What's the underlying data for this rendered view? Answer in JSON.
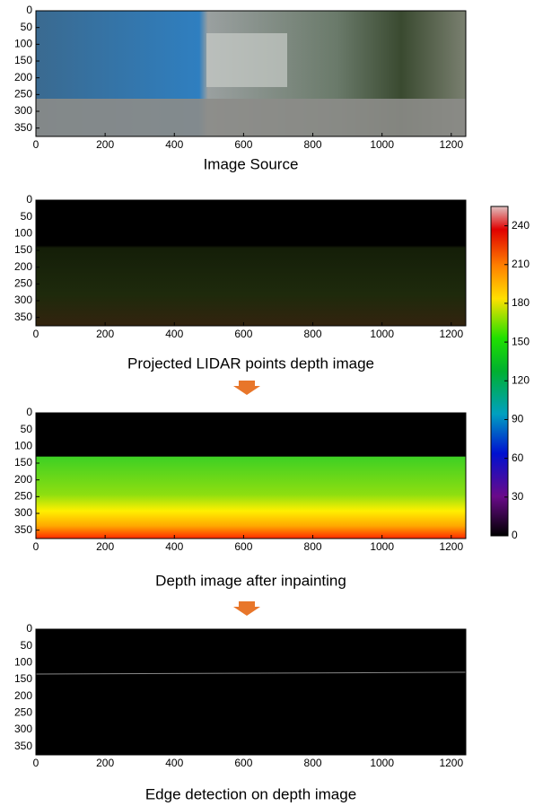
{
  "chart_data": [
    {
      "type": "image",
      "title": "Image Source",
      "xlim": [
        0,
        1242
      ],
      "ylim": [
        0,
        375
      ],
      "y_inverted": true,
      "xticks": [
        0,
        200,
        400,
        600,
        800,
        1000,
        1200
      ],
      "yticks": [
        0,
        50,
        100,
        150,
        200,
        250,
        300,
        350
      ]
    },
    {
      "type": "image",
      "title": "Projected LIDAR points depth image",
      "xlim": [
        0,
        1242
      ],
      "ylim": [
        0,
        375
      ],
      "y_inverted": true,
      "xticks": [
        0,
        200,
        400,
        600,
        800,
        1000,
        1200
      ],
      "yticks": [
        0,
        50,
        100,
        150,
        200,
        250,
        300,
        350
      ]
    },
    {
      "type": "image",
      "title": "Depth image after inpainting",
      "xlim": [
        0,
        1242
      ],
      "ylim": [
        0,
        375
      ],
      "y_inverted": true,
      "xticks": [
        0,
        200,
        400,
        600,
        800,
        1000,
        1200
      ],
      "yticks": [
        0,
        50,
        100,
        150,
        200,
        250,
        300,
        350
      ]
    },
    {
      "type": "image",
      "title": "Edge detection on depth image",
      "xlim": [
        0,
        1242
      ],
      "ylim": [
        0,
        375
      ],
      "y_inverted": true,
      "xticks": [
        0,
        200,
        400,
        600,
        800,
        1000,
        1200
      ],
      "yticks": [
        0,
        50,
        100,
        150,
        200,
        250,
        300,
        350
      ]
    },
    {
      "type": "colorbar",
      "ylim": [
        0,
        255
      ],
      "yticks": [
        0,
        30,
        60,
        90,
        120,
        150,
        180,
        210,
        240
      ]
    }
  ]
}
